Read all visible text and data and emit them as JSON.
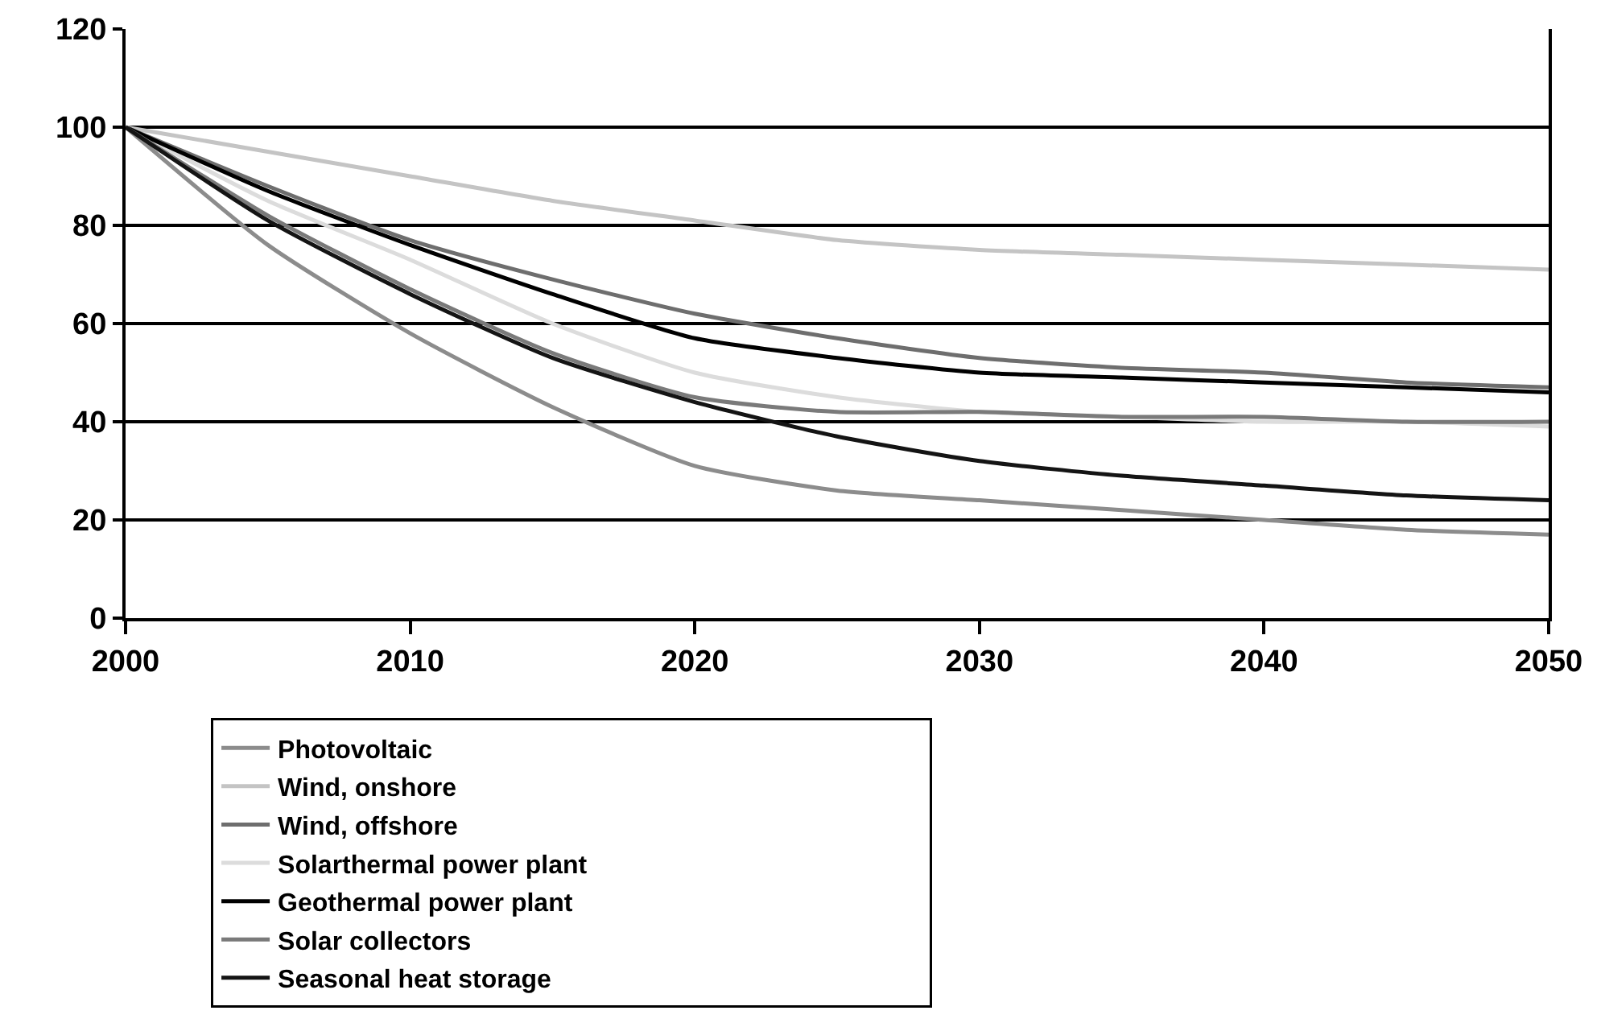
{
  "chart_data": {
    "type": "line",
    "x": [
      2000,
      2005,
      2010,
      2015,
      2020,
      2025,
      2030,
      2035,
      2040,
      2045,
      2050
    ],
    "series": [
      {
        "name": "Photovoltaic",
        "color": "#8c8c8c",
        "values": [
          100,
          76,
          58,
          43,
          31,
          26,
          24,
          22,
          20,
          18,
          17
        ]
      },
      {
        "name": "Wind, onshore",
        "color": "#c4c4c4",
        "values": [
          100,
          95,
          90,
          85,
          81,
          77,
          75,
          74,
          73,
          72,
          71
        ]
      },
      {
        "name": "Wind, offshore",
        "color": "#6e6e6e",
        "values": [
          100,
          88,
          77,
          69,
          62,
          57,
          53,
          51,
          50,
          48,
          47
        ]
      },
      {
        "name": "Solarthermal power plant",
        "color": "#dcdcdc",
        "values": [
          100,
          85,
          73,
          60,
          50,
          45,
          42,
          41,
          40,
          40,
          39
        ]
      },
      {
        "name": "Geothermal power plant",
        "color": "#000000",
        "values": [
          100,
          87,
          76,
          66,
          57,
          53,
          50,
          49,
          48,
          47,
          46
        ]
      },
      {
        "name": "Solar collectors",
        "color": "#7a7a7a",
        "values": [
          100,
          82,
          67,
          54,
          45,
          42,
          42,
          41,
          41,
          40,
          40
        ]
      },
      {
        "name": "Seasonal heat storage",
        "color": "#141414",
        "values": [
          100,
          81,
          66,
          53,
          44,
          37,
          32,
          29,
          27,
          25,
          24
        ]
      }
    ],
    "xlim": [
      2000,
      2050
    ],
    "xticks": [
      2000,
      2010,
      2020,
      2030,
      2040,
      2050
    ],
    "ylim": [
      0,
      120
    ],
    "yticks": [
      0,
      20,
      40,
      60,
      80,
      100,
      120
    ],
    "grid": "y",
    "legend": "bottom",
    "line_style": "solid",
    "marker": "none"
  }
}
